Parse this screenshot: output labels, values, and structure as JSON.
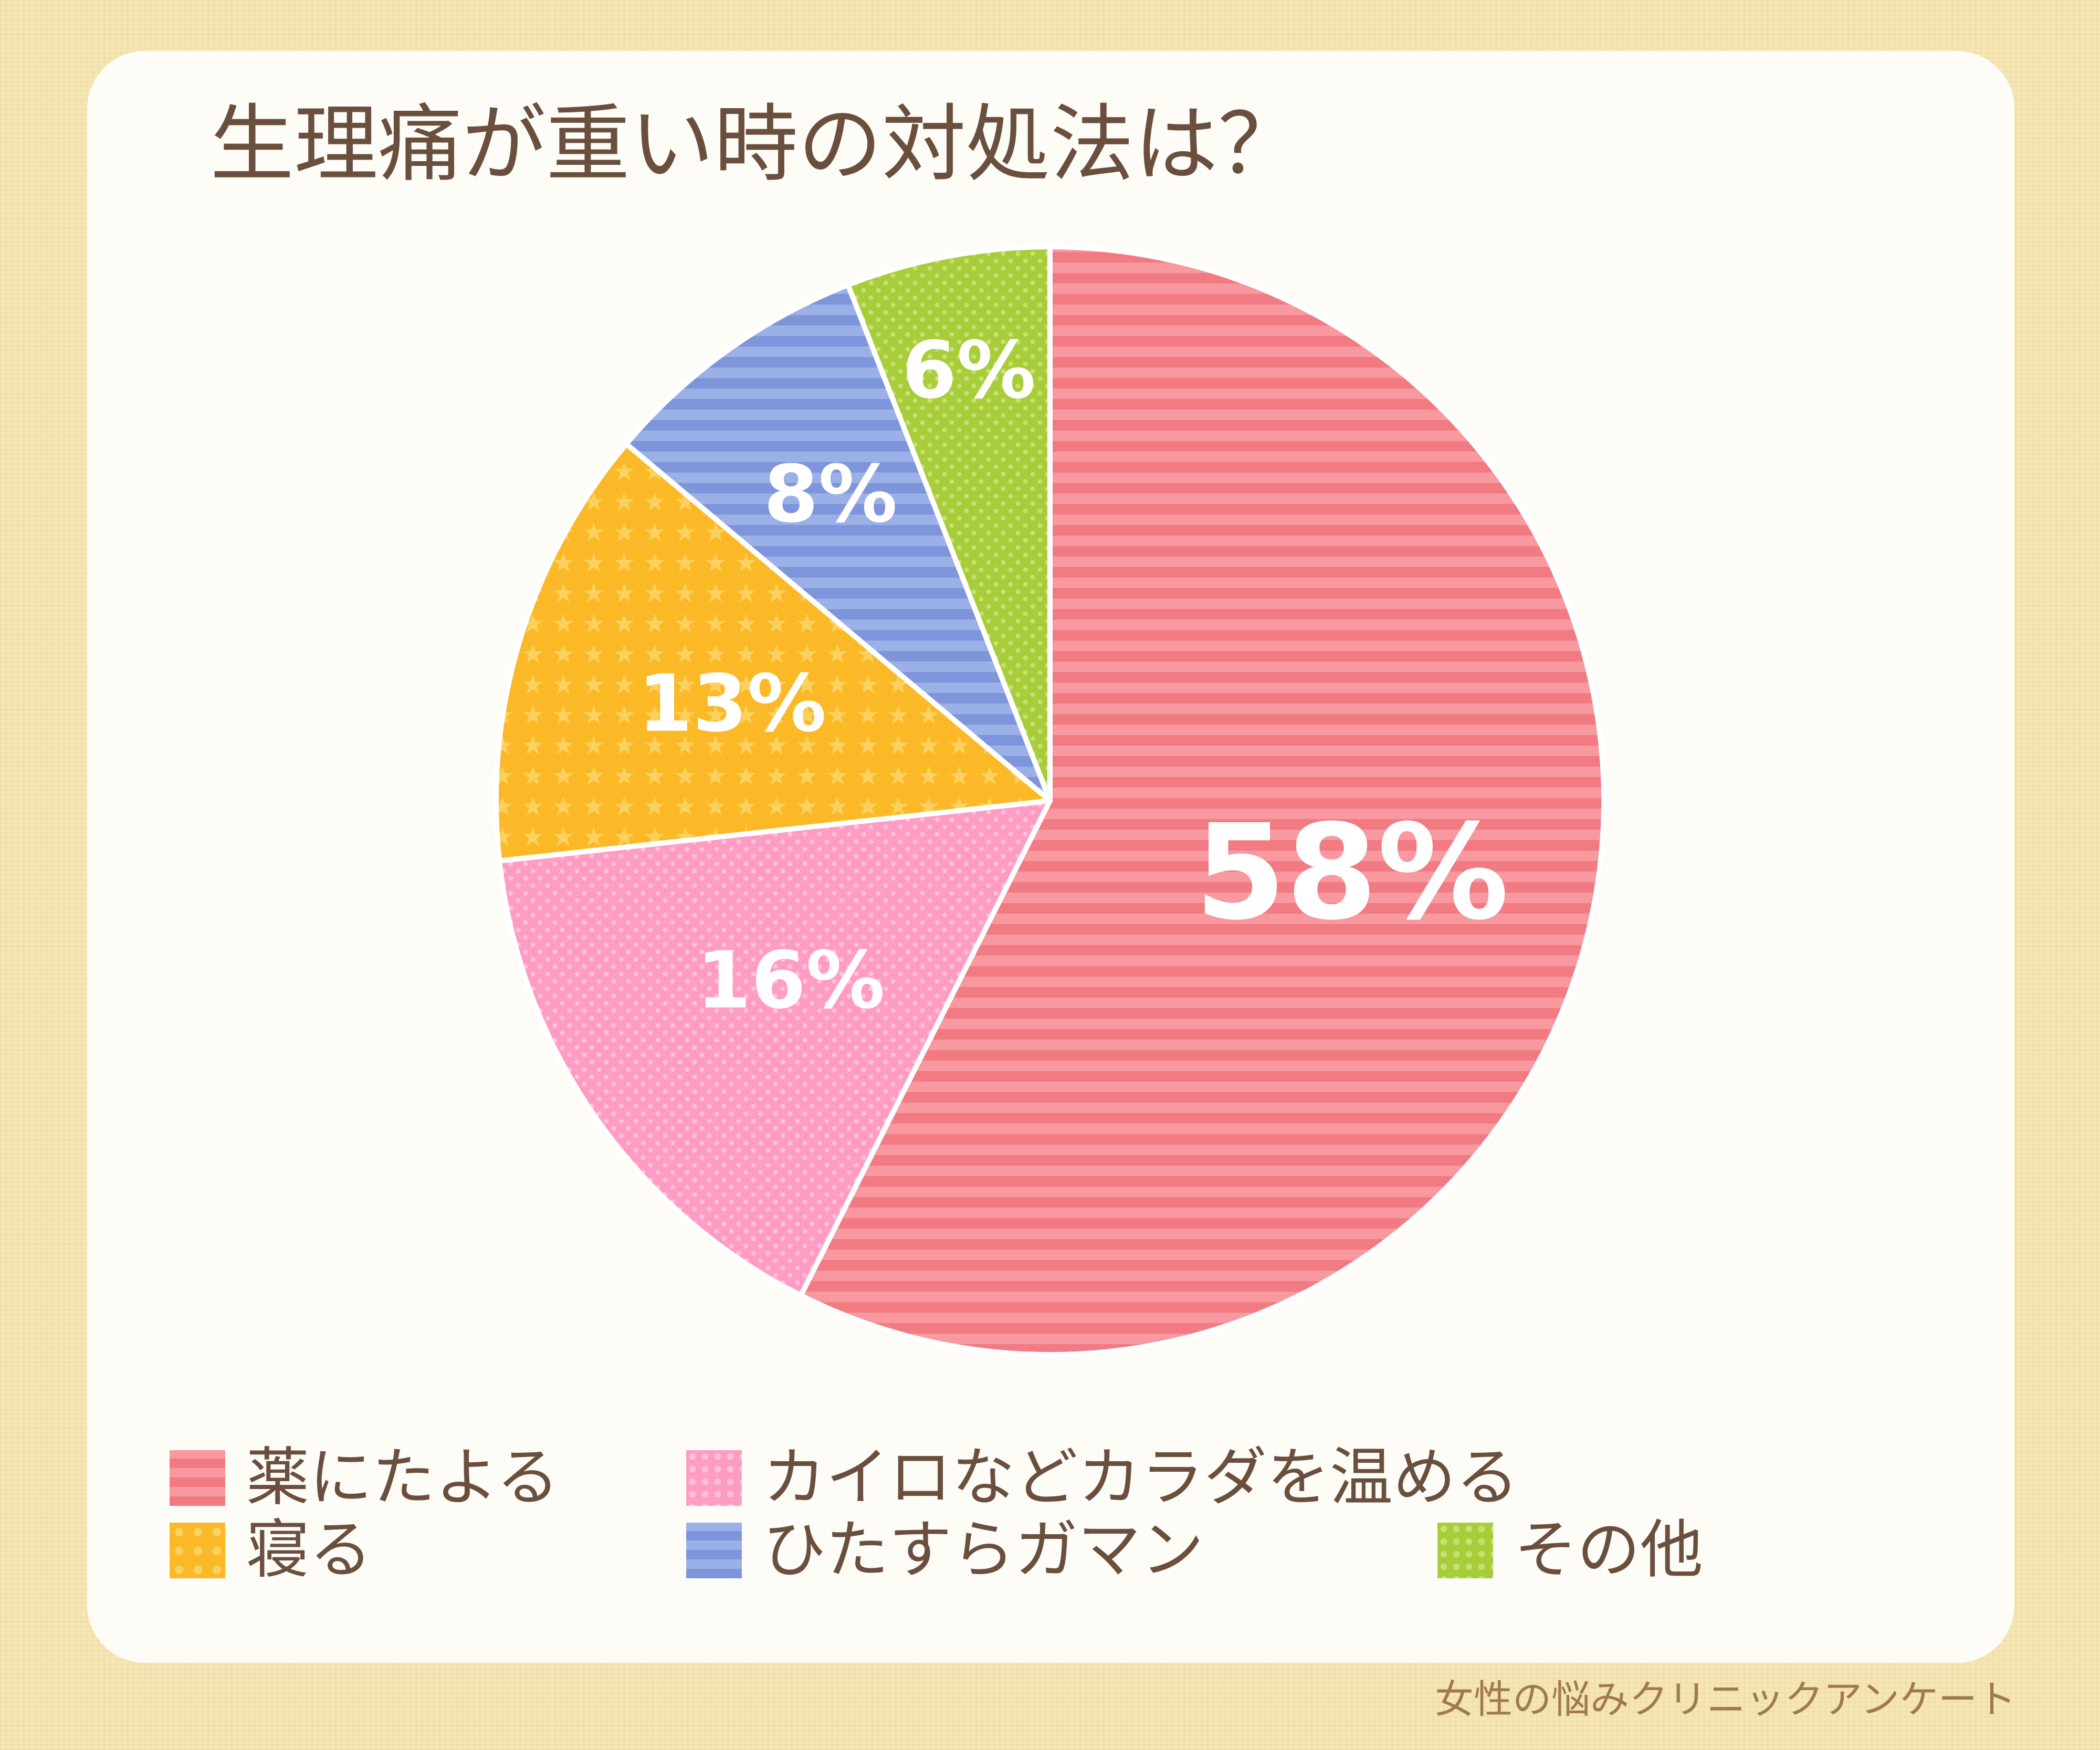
{
  "title": "生理痛が重い時の対処法は？",
  "footer": "女性の悩みクリニックアンケート",
  "chart_data": {
    "type": "pie",
    "title": "生理痛が重い時の対処法は？",
    "slices": [
      {
        "label": "薬にたよる",
        "value": 58,
        "display": "58%",
        "color": "#f27a82",
        "pattern": "stripes"
      },
      {
        "label": "カイロなどカラダを温める",
        "value": 16,
        "display": "16%",
        "color": "#ff9cc3",
        "pattern": "dots"
      },
      {
        "label": "寝る",
        "value": 13,
        "display": "13%",
        "color": "#fbb927",
        "pattern": "stars"
      },
      {
        "label": "ひたすらガマン",
        "value": 8,
        "display": "8%",
        "color": "#7e95dc",
        "pattern": "stripes"
      },
      {
        "label": "その他",
        "value": 6,
        "display": "6%",
        "color": "#a8cd3a",
        "pattern": "dots"
      }
    ],
    "start": "top",
    "direction": "clockwise",
    "legend_position": "bottom"
  },
  "legend": [
    {
      "label": "薬にたよる"
    },
    {
      "label": "カイロなどカラダを温める"
    },
    {
      "label": "寝る"
    },
    {
      "label": "ひたすらガマン"
    },
    {
      "label": "その他"
    }
  ]
}
